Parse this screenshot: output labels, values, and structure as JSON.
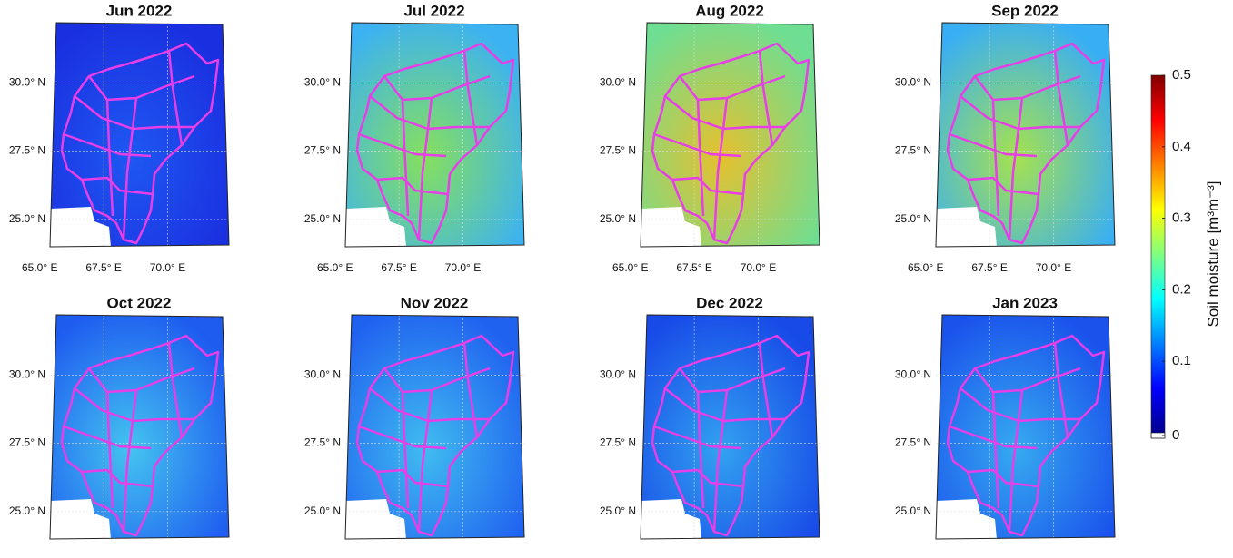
{
  "chart_data": {
    "type": "map",
    "panels": [
      {
        "title": "Jun 2022",
        "color": "#1a2fe0",
        "accent": "#1f58f2"
      },
      {
        "title": "Jul 2022",
        "color": "#3cb2f2",
        "accent": "#86e05c"
      },
      {
        "title": "Aug 2022",
        "color": "#6ede92",
        "accent": "#e6c02e"
      },
      {
        "title": "Sep 2022",
        "color": "#38aef5",
        "accent": "#a6e24e"
      },
      {
        "title": "Oct 2022",
        "color": "#1e5cf0",
        "accent": "#44c4f0"
      },
      {
        "title": "Nov 2022",
        "color": "#2062f0",
        "accent": "#40bcf0"
      },
      {
        "title": "Dec 2022",
        "color": "#184ae8",
        "accent": "#32a2f0"
      },
      {
        "title": "Jan 2023",
        "color": "#1a52ec",
        "accent": "#36aaf0"
      }
    ],
    "lonlim": [
      65.4,
      72.4
    ],
    "latlim": [
      24,
      32.2
    ],
    "lonticks": [
      {
        "value": 65,
        "label": "65.0° E"
      },
      {
        "value": 67.5,
        "label": "67.5° E"
      },
      {
        "value": 70,
        "label": "70.0° E"
      }
    ],
    "latticks": [
      {
        "value": 30,
        "label": "30.0° N"
      },
      {
        "value": 27.5,
        "label": "27.5° N"
      },
      {
        "value": 25,
        "label": "25.0° N"
      }
    ],
    "boundary_color": "#e83ee8",
    "colorbar": {
      "label": "Soil moisture [m³m⁻³]",
      "lim": [
        0,
        0.5
      ],
      "ticks": [
        0,
        0.1,
        0.2,
        0.3,
        0.4,
        0.5
      ]
    }
  }
}
